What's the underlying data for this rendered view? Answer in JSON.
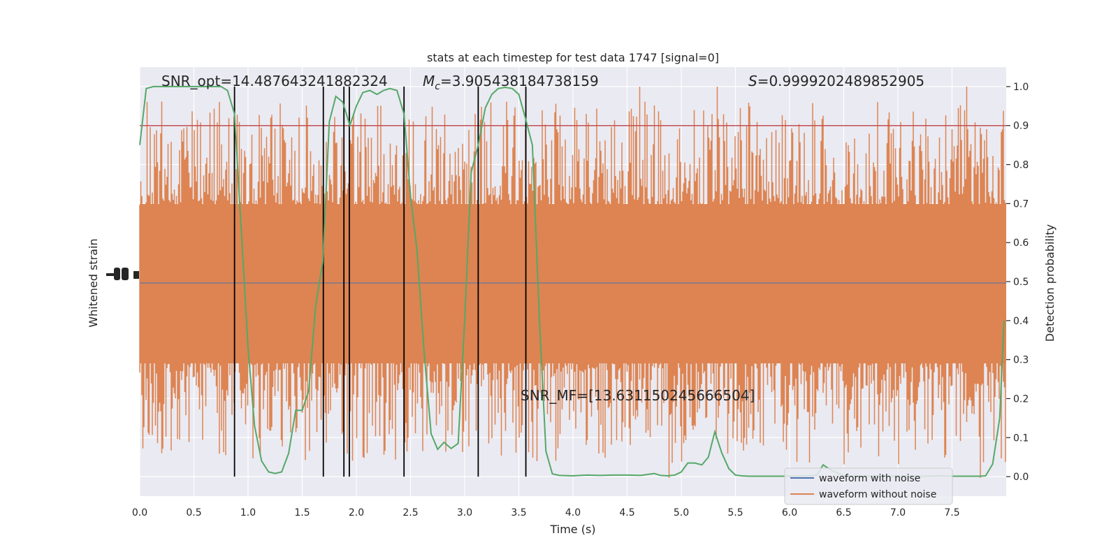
{
  "chart_data": {
    "type": "line",
    "title": "stats at each timestep for test data 1747 [signal=0]",
    "xlabel": "Time (s)",
    "ylabel_left": "Whitened strain",
    "ylabel_right": "Detection probability",
    "xlim": [
      0,
      8
    ],
    "ylim_right": [
      -0.05,
      1.05
    ],
    "x_ticks": [
      0.0,
      0.5,
      1.0,
      1.5,
      2.0,
      2.5,
      3.0,
      3.5,
      4.0,
      4.5,
      5.0,
      5.5,
      6.0,
      6.5,
      7.0,
      7.5
    ],
    "x_tick_labels": [
      "0.0",
      "0.5",
      "1.0",
      "1.5",
      "2.0",
      "2.5",
      "3.0",
      "3.5",
      "4.0",
      "4.5",
      "5.0",
      "5.5",
      "6.0",
      "6.5",
      "7.0",
      "7.5"
    ],
    "y_ticks_right": [
      0.0,
      0.1,
      0.2,
      0.3,
      0.4,
      0.5,
      0.6,
      0.7,
      0.8,
      0.9,
      1.0
    ],
    "y_tick_labels_right": [
      "0.0",
      "0.1",
      "0.2",
      "0.3",
      "0.4",
      "0.5",
      "0.6",
      "0.7",
      "0.8",
      "0.9",
      "1.0"
    ],
    "grid": true,
    "legend_position": "lower-right",
    "annotations": {
      "snr_opt": "SNR_opt=14.487643241882324",
      "mc_symbol": "M",
      "mc_sub": "c",
      "mc_value": "=3.905438184738159",
      "s_symbol": "S",
      "s_value": "=0.9999202489852905",
      "snr_mf": "SNR_MF=[13.631150245666504]"
    },
    "threshold": 0.9,
    "vertical_lines_x": [
      0.875,
      1.695,
      1.885,
      1.935,
      2.44,
      3.125,
      3.565
    ],
    "series": [
      {
        "name": "waveform with noise",
        "color": "#4c72b0"
      },
      {
        "name": "waveform without noise",
        "color": "#dd8452"
      }
    ],
    "detection_probability": {
      "color": "#55a868",
      "x": [
        0.0,
        0.06,
        0.125,
        0.19,
        0.25,
        0.31,
        0.375,
        0.44,
        0.5,
        0.56,
        0.625,
        0.69,
        0.75,
        0.81,
        0.875,
        0.94,
        1.0,
        1.06,
        1.125,
        1.19,
        1.25,
        1.31,
        1.375,
        1.44,
        1.5,
        1.56,
        1.625,
        1.69,
        1.75,
        1.81,
        1.875,
        1.94,
        2.0,
        2.06,
        2.125,
        2.19,
        2.25,
        2.31,
        2.375,
        2.44,
        2.5,
        2.56,
        2.625,
        2.69,
        2.75,
        2.81,
        2.875,
        2.94,
        3.0,
        3.06,
        3.125,
        3.19,
        3.25,
        3.31,
        3.375,
        3.44,
        3.5,
        3.56,
        3.625,
        3.69,
        3.75,
        3.81,
        3.875,
        4.0,
        4.125,
        4.25,
        4.375,
        4.5,
        4.625,
        4.75,
        4.81,
        4.875,
        4.94,
        5.0,
        5.06,
        5.125,
        5.19,
        5.25,
        5.31,
        5.375,
        5.44,
        5.5,
        5.56,
        5.625,
        5.75,
        5.875,
        6.0,
        6.125,
        6.25,
        6.31,
        6.375,
        6.5,
        6.625,
        6.75,
        6.875,
        7.0,
        7.125,
        7.25,
        7.375,
        7.5,
        7.625,
        7.75,
        7.81,
        7.875,
        7.94,
        7.98
      ],
      "y": [
        0.85,
        0.995,
        1.0,
        1.0,
        1.0,
        1.0,
        1.0,
        1.0,
        1.0,
        1.0,
        1.0,
        1.0,
        1.0,
        0.99,
        0.93,
        0.62,
        0.33,
        0.13,
        0.04,
        0.012,
        0.008,
        0.012,
        0.06,
        0.17,
        0.17,
        0.22,
        0.44,
        0.55,
        0.91,
        0.975,
        0.96,
        0.9,
        0.95,
        0.985,
        0.99,
        0.98,
        0.99,
        0.995,
        0.99,
        0.93,
        0.72,
        0.58,
        0.32,
        0.11,
        0.07,
        0.088,
        0.072,
        0.085,
        0.4,
        0.78,
        0.85,
        0.945,
        0.98,
        0.995,
        0.998,
        0.995,
        0.98,
        0.92,
        0.85,
        0.4,
        0.065,
        0.007,
        0.003,
        0.002,
        0.004,
        0.003,
        0.004,
        0.004,
        0.003,
        0.008,
        0.003,
        0.002,
        0.004,
        0.012,
        0.035,
        0.035,
        0.03,
        0.05,
        0.115,
        0.06,
        0.02,
        0.004,
        0.002,
        0.001,
        0.001,
        0.001,
        0.001,
        0.002,
        0.003,
        0.03,
        0.018,
        0.002,
        0.001,
        0.001,
        0.001,
        0.001,
        0.001,
        0.001,
        0.002,
        0.001,
        0.001,
        0.001,
        0.002,
        0.032,
        0.15,
        0.4
      ]
    }
  }
}
